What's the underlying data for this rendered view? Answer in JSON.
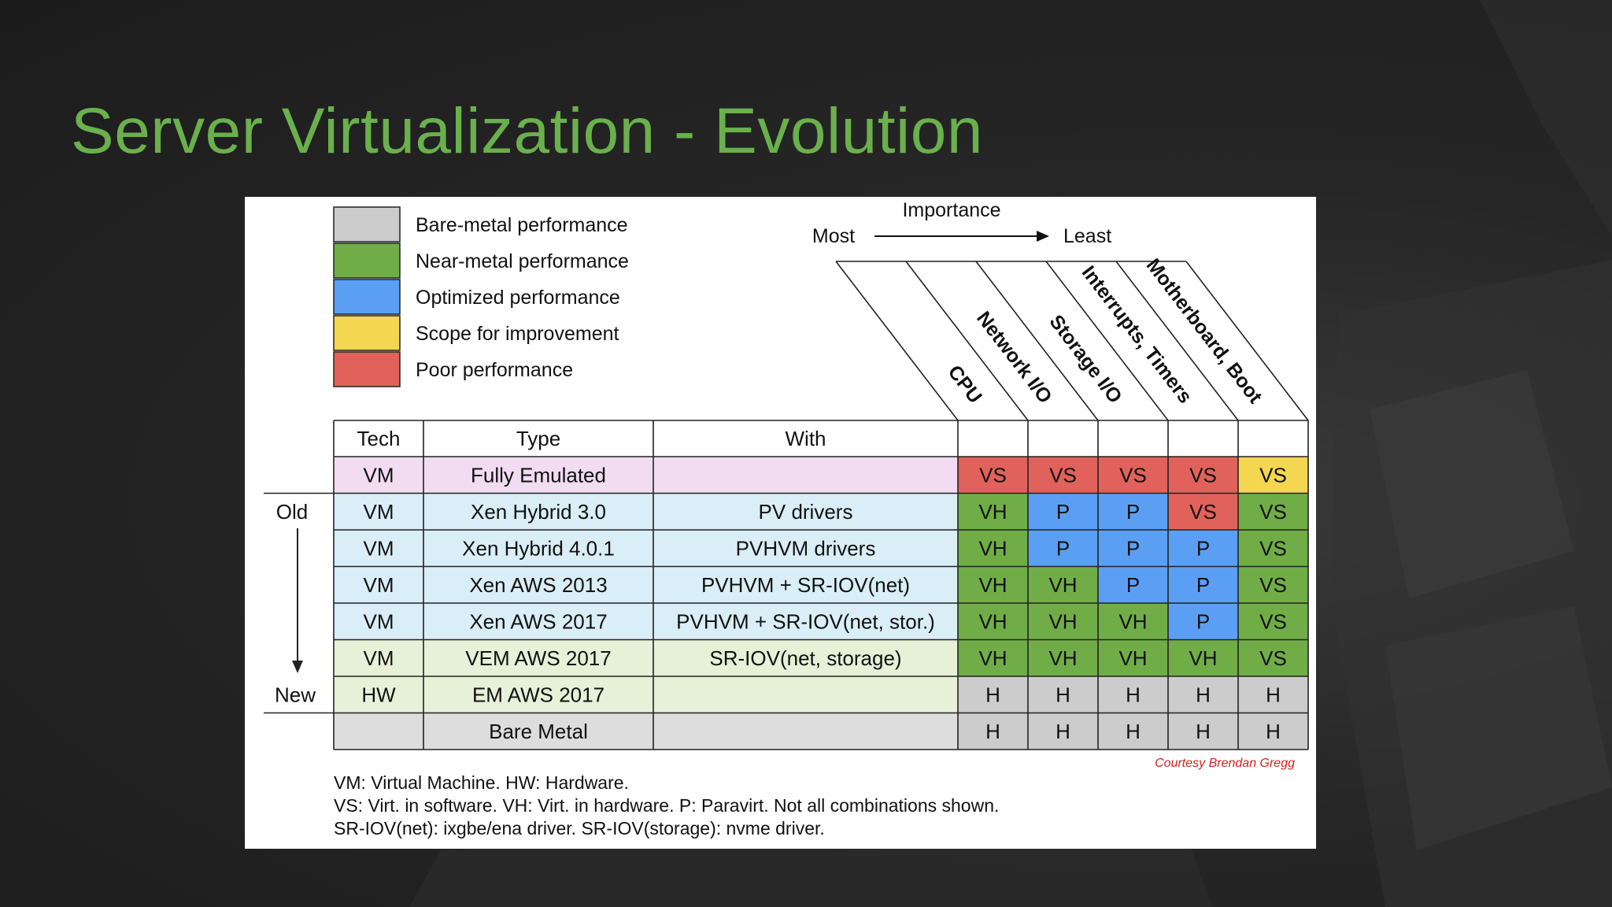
{
  "slide": {
    "title": "Server Virtualization - Evolution"
  },
  "legend": [
    {
      "label": "Bare-metal performance",
      "color": "#cccccc"
    },
    {
      "label": "Near-metal performance",
      "color": "#70ad47"
    },
    {
      "label": "Optimized performance",
      "color": "#5b9ff5"
    },
    {
      "label": "Scope for improvement",
      "color": "#f4d650"
    },
    {
      "label": "Poor performance",
      "color": "#e0625a"
    }
  ],
  "importance": {
    "title": "Importance",
    "most": "Most",
    "least": "Least"
  },
  "columns": {
    "tech": "Tech",
    "type": "Type",
    "with": "With",
    "resources": [
      "CPU",
      "Network I/O",
      "Storage I/O",
      "Interrupts, Timers",
      "Motherboard, Boot"
    ]
  },
  "timeline": {
    "old": "Old",
    "new": "New"
  },
  "cell_colors": {
    "VS": "#e0625a",
    "VS_yellow": "#f4d650",
    "VH": "#70ad47",
    "P": "#5b9ff5",
    "H": "#cccccc",
    "line": "#222222"
  },
  "rows": [
    {
      "tech": "VM",
      "type": "Fully Emulated",
      "with": "",
      "bg": "#f2dcf2",
      "cells": [
        {
          "t": "VS",
          "c": "#e0625a"
        },
        {
          "t": "VS",
          "c": "#e0625a"
        },
        {
          "t": "VS",
          "c": "#e0625a"
        },
        {
          "t": "VS",
          "c": "#e0625a"
        },
        {
          "t": "VS",
          "c": "#f4d650"
        }
      ]
    },
    {
      "tech": "VM",
      "type": "Xen Hybrid 3.0",
      "with": "PV drivers",
      "bg": "#d9eef6",
      "cells": [
        {
          "t": "VH",
          "c": "#70ad47"
        },
        {
          "t": "P",
          "c": "#5b9ff5"
        },
        {
          "t": "P",
          "c": "#5b9ff5"
        },
        {
          "t": "VS",
          "c": "#e0625a"
        },
        {
          "t": "VS",
          "c": "#70ad47"
        }
      ]
    },
    {
      "tech": "VM",
      "type": "Xen Hybrid 4.0.1",
      "with": "PVHVM drivers",
      "bg": "#d9eef6",
      "cells": [
        {
          "t": "VH",
          "c": "#70ad47"
        },
        {
          "t": "P",
          "c": "#5b9ff5"
        },
        {
          "t": "P",
          "c": "#5b9ff5"
        },
        {
          "t": "P",
          "c": "#5b9ff5"
        },
        {
          "t": "VS",
          "c": "#70ad47"
        }
      ]
    },
    {
      "tech": "VM",
      "type": "Xen AWS 2013",
      "with": "PVHVM + SR-IOV(net)",
      "bg": "#d9eef6",
      "cells": [
        {
          "t": "VH",
          "c": "#70ad47"
        },
        {
          "t": "VH",
          "c": "#70ad47"
        },
        {
          "t": "P",
          "c": "#5b9ff5"
        },
        {
          "t": "P",
          "c": "#5b9ff5"
        },
        {
          "t": "VS",
          "c": "#70ad47"
        }
      ]
    },
    {
      "tech": "VM",
      "type": "Xen AWS 2017",
      "with": "PVHVM + SR-IOV(net, stor.)",
      "bg": "#d9eef6",
      "cells": [
        {
          "t": "VH",
          "c": "#70ad47"
        },
        {
          "t": "VH",
          "c": "#70ad47"
        },
        {
          "t": "VH",
          "c": "#70ad47"
        },
        {
          "t": "P",
          "c": "#5b9ff5"
        },
        {
          "t": "VS",
          "c": "#70ad47"
        }
      ]
    },
    {
      "tech": "VM",
      "type": "VEM AWS 2017",
      "with": "SR-IOV(net, storage)",
      "bg": "#e6f1d8",
      "cells": [
        {
          "t": "VH",
          "c": "#70ad47"
        },
        {
          "t": "VH",
          "c": "#70ad47"
        },
        {
          "t": "VH",
          "c": "#70ad47"
        },
        {
          "t": "VH",
          "c": "#70ad47"
        },
        {
          "t": "VS",
          "c": "#70ad47"
        }
      ]
    },
    {
      "tech": "HW",
      "type": "EM AWS 2017",
      "with": "",
      "bg": "#e6f1d8",
      "cells": [
        {
          "t": "H",
          "c": "#cccccc"
        },
        {
          "t": "H",
          "c": "#cccccc"
        },
        {
          "t": "H",
          "c": "#cccccc"
        },
        {
          "t": "H",
          "c": "#cccccc"
        },
        {
          "t": "H",
          "c": "#cccccc"
        }
      ]
    },
    {
      "tech": "",
      "type": "Bare Metal",
      "with": "",
      "bg": "#dddddd",
      "cells": [
        {
          "t": "H",
          "c": "#cccccc"
        },
        {
          "t": "H",
          "c": "#cccccc"
        },
        {
          "t": "H",
          "c": "#cccccc"
        },
        {
          "t": "H",
          "c": "#cccccc"
        },
        {
          "t": "H",
          "c": "#cccccc"
        }
      ]
    }
  ],
  "courtesy": "Courtesy Brendan Gregg",
  "footnotes": [
    "VM: Virtual Machine. HW: Hardware.",
    "VS: Virt. in software. VH: Virt. in hardware. P: Paravirt. Not all combinations shown.",
    "SR-IOV(net): ixgbe/ena driver. SR-IOV(storage): nvme driver."
  ]
}
